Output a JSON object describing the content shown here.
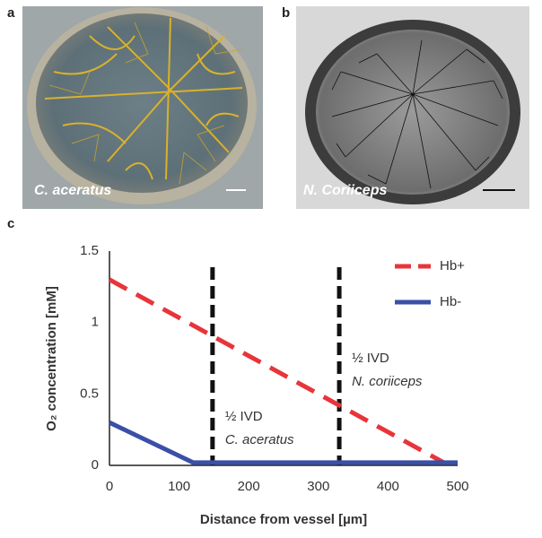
{
  "panels": [
    {
      "label": "a",
      "caption": "C. aceratus"
    },
    {
      "label": "b",
      "caption": "N. Coriiceps"
    }
  ],
  "chart_data": {
    "type": "line",
    "label": "c",
    "xlabel": "Distance from vessel [µm]",
    "ylabel": "O₂ concentration [mM]",
    "xlim": [
      0,
      500
    ],
    "xticks": [
      0,
      100,
      200,
      300,
      400,
      500
    ],
    "ylim": [
      0,
      1.5
    ],
    "yticks": [
      0,
      0.5,
      1,
      1.5
    ],
    "grid": false,
    "legend": "upper right",
    "series": [
      {
        "name": "Hb+",
        "color": "#e8343a",
        "style": "dashed",
        "x": [
          0,
          480
        ],
        "values": [
          1.3,
          0.02
        ]
      },
      {
        "name": "Hb-",
        "color": "#3a4fa8",
        "style": "solid",
        "x": [
          0,
          120,
          500
        ],
        "values": [
          0.3,
          0.02,
          0.02
        ]
      }
    ],
    "vlines": [
      {
        "x": 148,
        "text": [
          "½ IVD",
          "C. aceratus"
        ]
      },
      {
        "x": 330,
        "text": [
          "½ IVD",
          "N. coriiceps"
        ]
      }
    ]
  }
}
